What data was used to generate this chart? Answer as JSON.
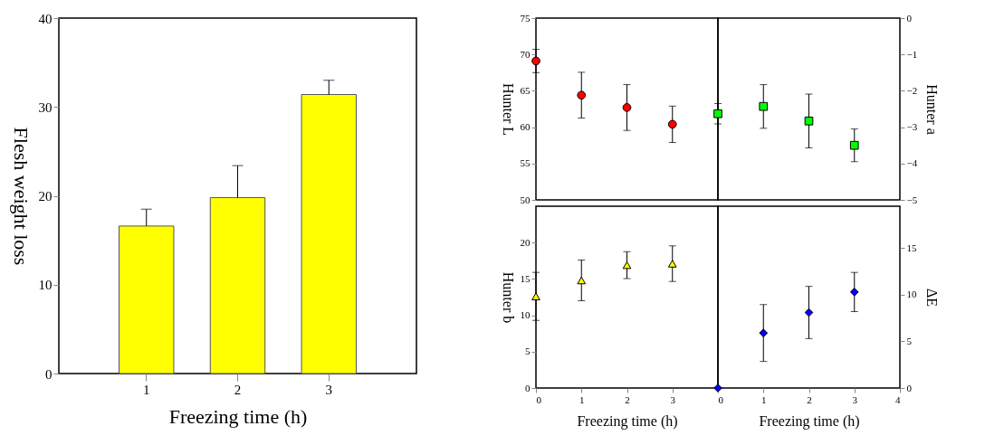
{
  "chart_data": [
    {
      "type": "bar",
      "categories": [
        "1",
        "2",
        "3"
      ],
      "values": [
        16.6,
        19.8,
        31.4
      ],
      "errors": [
        [
          16.6,
          18.5
        ],
        [
          19.8,
          23.4
        ],
        [
          31.4,
          33.0
        ]
      ],
      "color": "#ffff00",
      "xlabel": "Freezing time (h)",
      "ylabel": "Flesh weight loss",
      "ylim": [
        0,
        40
      ],
      "yticks": [
        0,
        10,
        20,
        30,
        40
      ]
    },
    {
      "type": "scatter",
      "x": [
        0,
        1,
        2,
        3
      ],
      "series": [
        {
          "color": "#ff0000",
          "values": [
            69.1,
            64.4,
            62.7,
            60.4
          ],
          "errors": [
            1.6,
            3.15,
            3.15,
            2.5
          ]
        }
      ],
      "marker": "circle",
      "ylabel": "Hunter L",
      "xlim": [
        0,
        4
      ],
      "xticks": [
        0,
        1,
        2,
        3,
        4
      ],
      "ylim": [
        50,
        75
      ],
      "yticks": [
        50,
        55,
        60,
        65,
        70,
        75
      ],
      "tick_labels": "y"
    },
    {
      "type": "scatter",
      "x": [
        0,
        1,
        2,
        3
      ],
      "series": [
        {
          "color": "#00ff00",
          "axis": "y2",
          "values": [
            -2.63,
            -2.43,
            -2.83,
            -3.5
          ],
          "errors": [
            0.28,
            0.6,
            0.74,
            0.45
          ]
        }
      ],
      "marker": "square",
      "y2label": "Hunter a",
      "xlim": [
        0,
        4
      ],
      "xticks": [
        0,
        1,
        2,
        3,
        4
      ],
      "y2lim": [
        -5,
        0
      ],
      "y2ticks": [
        -5,
        -4,
        -3,
        -2,
        -1,
        0
      ],
      "tick_labels": "y"
    },
    {
      "type": "scatter",
      "x": [
        0,
        1,
        2,
        3
      ],
      "series": [
        {
          "color": "#ffff00",
          "values": [
            12.6,
            14.8,
            16.9,
            17.1
          ],
          "errors": [
            3.3,
            2.8,
            1.85,
            2.45
          ]
        }
      ],
      "marker": "triangle",
      "xlabel": "Freezing time (h)",
      "ylabel": "Hunter b",
      "xlim": [
        0,
        4
      ],
      "xticks": [
        0,
        1,
        2,
        3
      ],
      "ylim": [
        0,
        25
      ],
      "yticks": [
        0,
        5,
        10,
        15,
        20
      ]
    },
    {
      "type": "scatter",
      "x": [
        0,
        1,
        2,
        3
      ],
      "series": [
        {
          "color": "#0000ff",
          "axis": "y2",
          "values": [
            0,
            5.9,
            8.1,
            10.3
          ],
          "errors": [
            null,
            3.05,
            2.8,
            2.1
          ]
        }
      ],
      "marker": "diamond",
      "xlabel": "Freezing time (h)",
      "y2label": "ΔE",
      "xlim": [
        0,
        4
      ],
      "xticks": [
        0,
        1,
        2,
        3,
        4
      ],
      "y2lim": [
        0,
        19.5
      ],
      "y2ticks": [
        0,
        5,
        10,
        15
      ]
    }
  ]
}
